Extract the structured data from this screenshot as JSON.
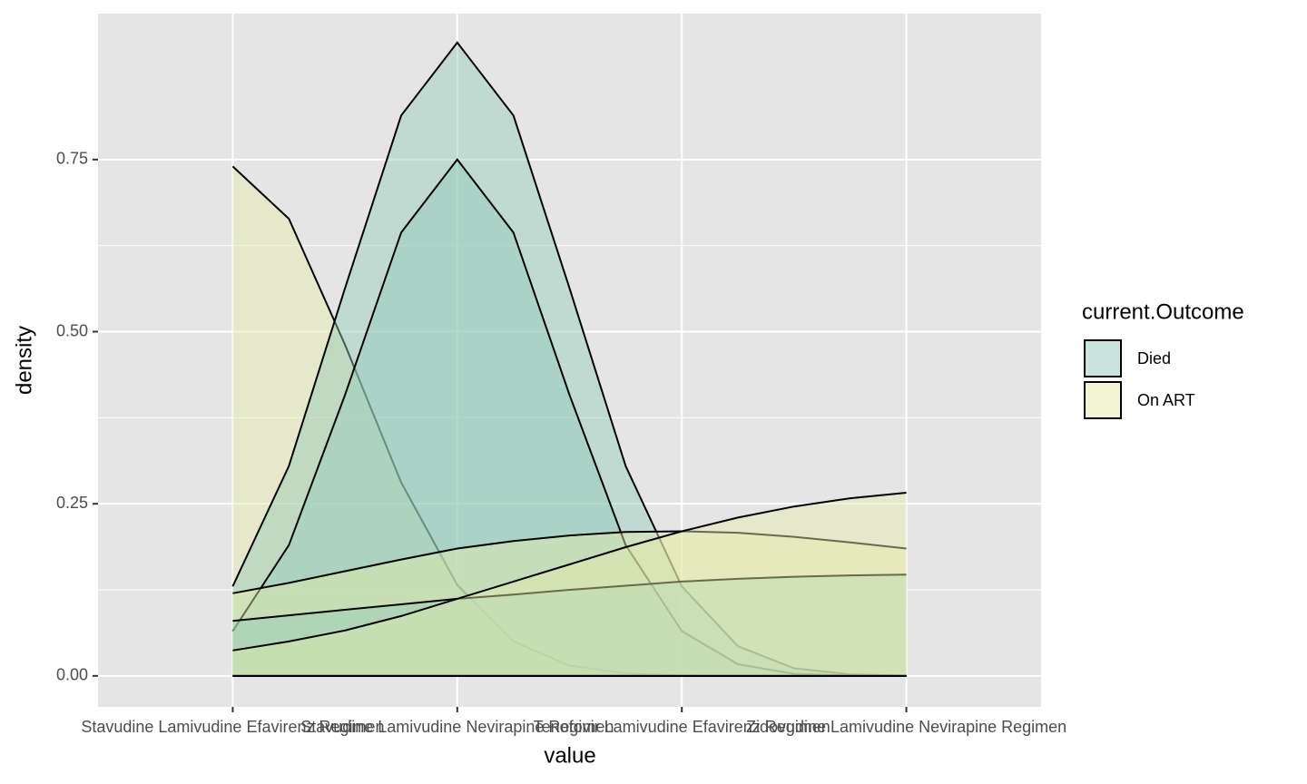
{
  "chart_data": {
    "type": "density",
    "x_label": "value",
    "y_label": "density",
    "categories": [
      "Stavudine Lamivudine Efavirenz Regimen",
      "Stavudine Lamivudine Nevirapine Regimen",
      "Tenofovir Lamivudine Efavirenz Regimen",
      "Zidovudine Lamivudine Nevirapine Regimen"
    ],
    "x": [
      1,
      1.25,
      1.5,
      1.75,
      2,
      2.25,
      2.5,
      2.75,
      3,
      3.25,
      3.5,
      3.75,
      4
    ],
    "xticks": [
      1,
      2,
      3,
      4
    ],
    "xlim": [
      0.4,
      4.6
    ],
    "ylim": [
      -0.045,
      0.962
    ],
    "yticks": [
      {
        "value": 0,
        "label": "0.00"
      },
      {
        "value": 0.25,
        "label": "0.25"
      },
      {
        "value": 0.5,
        "label": "0.50"
      },
      {
        "value": 0.75,
        "label": "0.75"
      }
    ],
    "grid": true,
    "minor_grid": true,
    "legend": {
      "title": "current.Outcome",
      "position": "right",
      "entries": [
        {
          "name": "Died",
          "color": "#93c9b9"
        },
        {
          "name": "On ART",
          "color": "#e5eaa9"
        }
      ]
    },
    "series": [
      {
        "outcome": 1,
        "values": [
          0.74,
          0.664,
          0.481,
          0.281,
          0.132,
          0.05,
          0.015,
          0.0038,
          0.0007,
          0,
          0,
          0,
          0
        ]
      },
      {
        "outcome": 0,
        "values": [
          0.13,
          0.305,
          0.563,
          0.814,
          0.92,
          0.814,
          0.563,
          0.305,
          0.13,
          0.043,
          0.011,
          0.0023,
          0.0004
        ]
      },
      {
        "outcome": 0,
        "values": [
          0.065,
          0.19,
          0.408,
          0.644,
          0.75,
          0.644,
          0.408,
          0.19,
          0.065,
          0.017,
          0.003,
          0.0004,
          0
        ]
      },
      {
        "outcome": 1,
        "values": [
          0.12,
          0.135,
          0.152,
          0.169,
          0.185,
          0.196,
          0.204,
          0.209,
          0.21,
          0.208,
          0.202,
          0.194,
          0.185
        ]
      },
      {
        "outcome": 0,
        "values": [
          0.08,
          0.088,
          0.096,
          0.104,
          0.112,
          0.118,
          0.125,
          0.131,
          0.137,
          0.141,
          0.144,
          0.146,
          0.147
        ]
      },
      {
        "outcome": 1,
        "values": [
          0.037,
          0.05,
          0.066,
          0.087,
          0.112,
          0.137,
          0.162,
          0.187,
          0.21,
          0.23,
          0.246,
          0.258,
          0.266
        ]
      }
    ]
  }
}
